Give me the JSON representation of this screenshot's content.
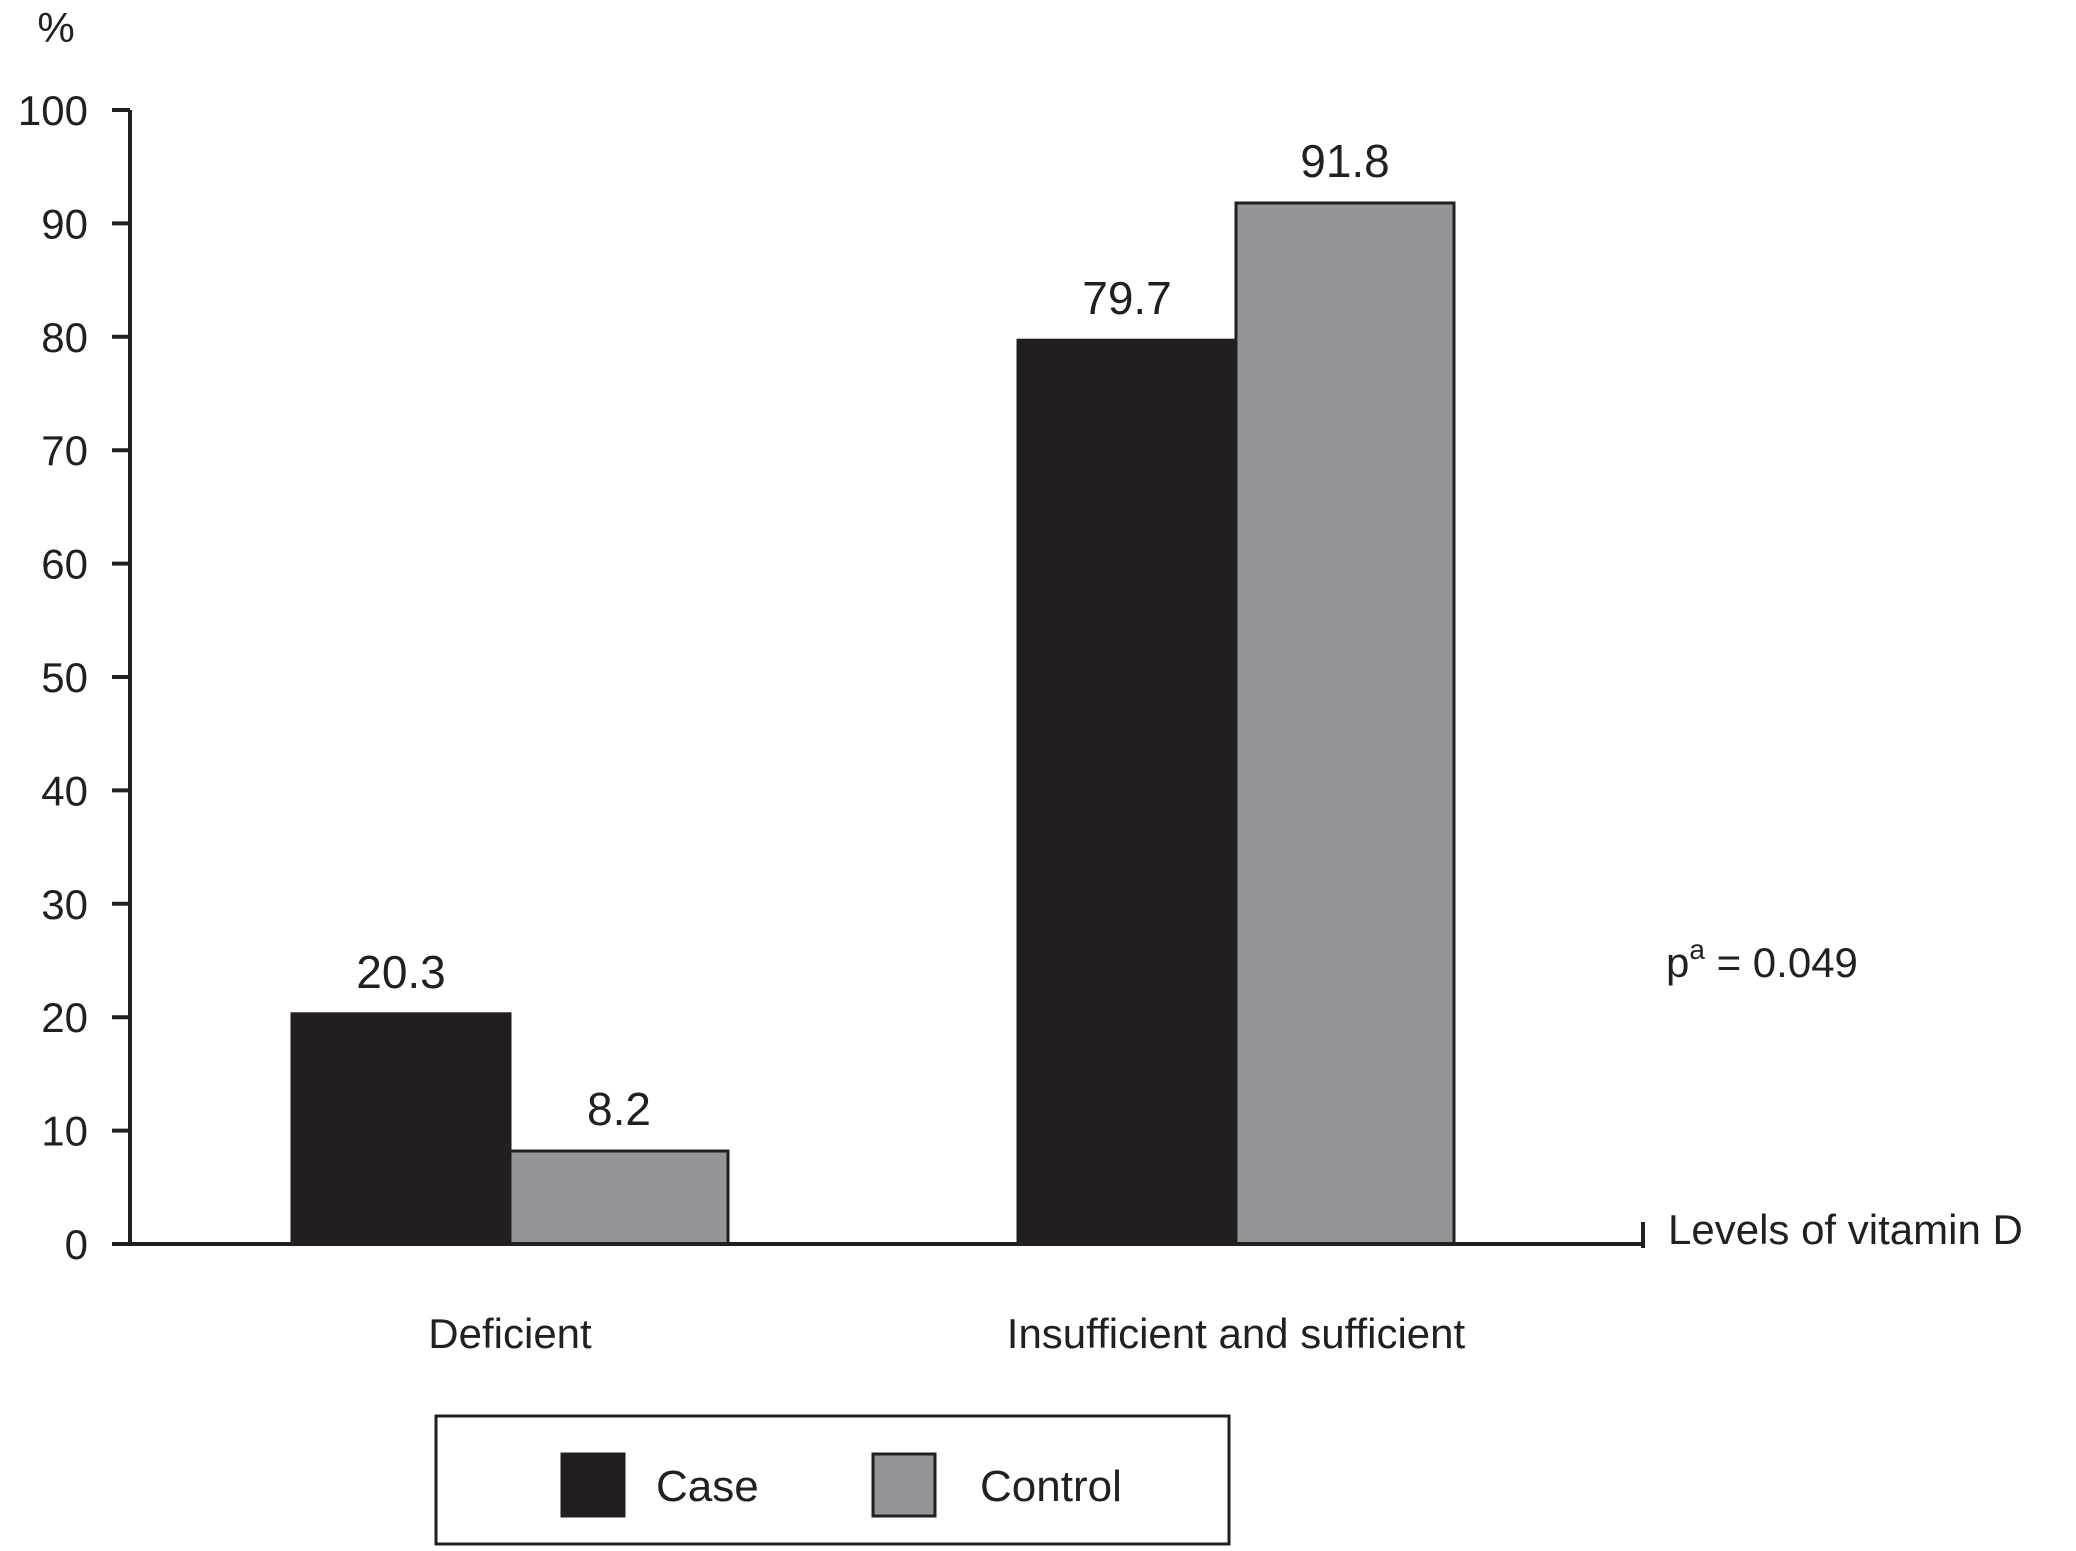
{
  "chart_data": {
    "type": "bar",
    "title": "",
    "ylabel": "%",
    "xlabel": "Levels of vitamin D",
    "ylim": [
      0,
      100
    ],
    "yticks": [
      0,
      10,
      20,
      30,
      40,
      50,
      60,
      70,
      80,
      90,
      100
    ],
    "categories": [
      "Deficient",
      "Insufficient and sufficient"
    ],
    "series": [
      {
        "name": "Case",
        "values": [
          20.3,
          79.7
        ],
        "labels": [
          "20.3",
          "79.7"
        ],
        "color": "#231f20"
      },
      {
        "name": "Control",
        "values": [
          8.2,
          91.8
        ],
        "labels": [
          "8.2",
          "91.8"
        ],
        "color": "#939598"
      }
    ],
    "annotation": {
      "prefix": "p",
      "superscript": "a",
      "suffix": " = 0.049"
    },
    "legend_position": "bottom-center",
    "grid": false,
    "colors": {
      "axis": "#231f20",
      "text": "#231f20",
      "background": "#ffffff"
    }
  }
}
